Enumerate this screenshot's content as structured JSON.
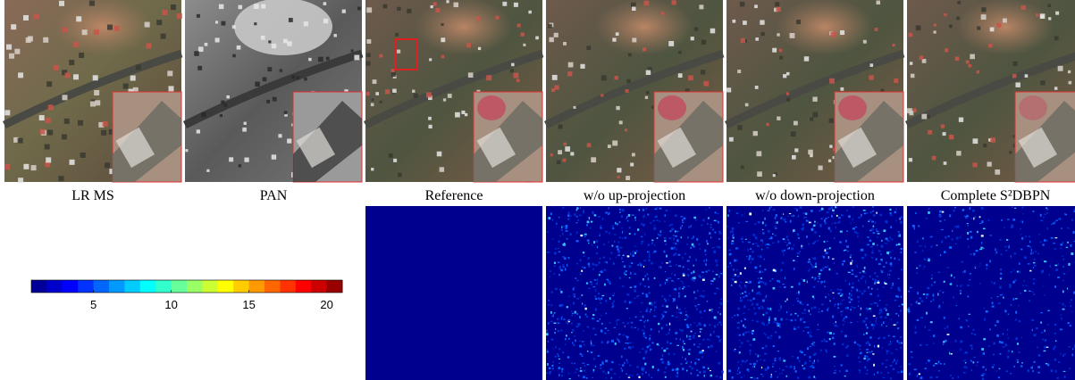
{
  "captions": [
    "LR MS",
    "PAN",
    "Reference",
    "w/o up-projection",
    "w/o down-projection",
    "Complete S²DBPN"
  ],
  "colorbar": {
    "range": [
      1,
      21
    ],
    "ticks": [
      5,
      10,
      15,
      20
    ]
  }
}
